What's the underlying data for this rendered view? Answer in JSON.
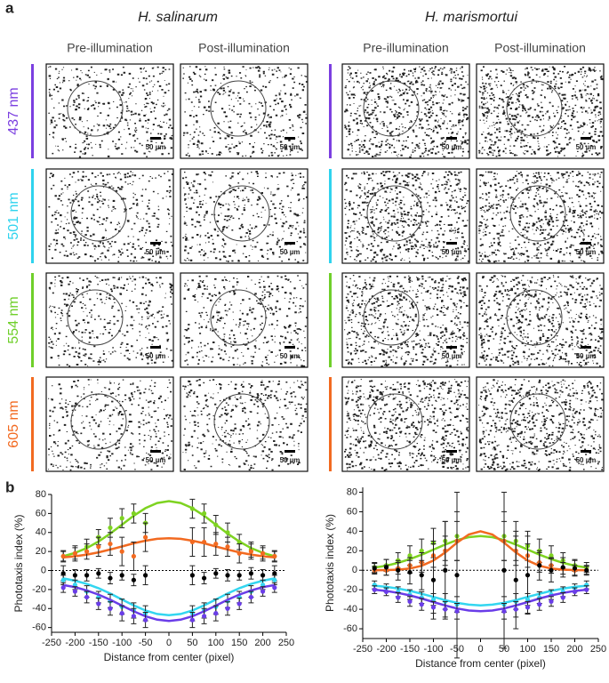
{
  "panel_a": {
    "label": "a",
    "species": [
      "H. salinarum",
      "H. marismortui"
    ],
    "columns": [
      "Pre-illumination",
      "Post-illumination",
      "Pre-illumination",
      "Post-illumination"
    ],
    "rows": [
      {
        "label": "437 nm",
        "color": "#7b3fe0"
      },
      {
        "label": "501 nm",
        "color": "#2fd3ee"
      },
      {
        "label": "554 nm",
        "color": "#6fcf2a"
      },
      {
        "label": "605 nm",
        "color": "#f26a21"
      }
    ],
    "scale_bar": "50 µm"
  },
  "panel_b": {
    "label": "b"
  },
  "chart_data": [
    {
      "type": "line",
      "y_label": "Phototaxis index (%)",
      "x_label": "Distance from center (pixel)",
      "x": [
        -225,
        -200,
        -175,
        -150,
        -125,
        -100,
        -75,
        -50,
        50,
        75,
        100,
        125,
        150,
        175,
        200,
        225
      ],
      "xlim": [
        -250,
        250
      ],
      "xticks": [
        -250,
        -200,
        -150,
        -100,
        -50,
        0,
        50,
        100,
        150,
        200,
        250
      ],
      "ylim": [
        -65,
        80
      ],
      "yticks": [
        -60,
        -40,
        -20,
        0,
        20,
        40,
        60,
        80
      ],
      "reference_line": 0,
      "fit_x": [
        -225,
        -200,
        -175,
        -150,
        -125,
        -100,
        -75,
        -50,
        -25,
        0,
        25,
        50,
        75,
        100,
        125,
        150,
        175,
        200,
        225
      ],
      "series": [
        {
          "color": "#7ed321",
          "values": [
            15,
            18,
            25,
            35,
            45,
            55,
            60,
            50,
            65,
            60,
            48,
            40,
            30,
            22,
            18,
            15
          ],
          "errors": [
            5,
            6,
            8,
            8,
            10,
            10,
            10,
            10,
            10,
            10,
            10,
            10,
            8,
            8,
            6,
            5
          ],
          "fit": [
            15.0,
            18.5,
            23.6,
            30.5,
            38.8,
            48.2,
            57.6,
            65.6,
            71.0,
            73,
            71.0,
            65.6,
            57.6,
            48.2,
            38.8,
            30.5,
            23.6,
            18.5,
            15.0
          ]
        },
        {
          "color": "#f26a21",
          "values": [
            15,
            18,
            20,
            25,
            28,
            20,
            15,
            35,
            30,
            30,
            28,
            25,
            18,
            20,
            18,
            15
          ],
          "errors": [
            6,
            8,
            8,
            10,
            12,
            15,
            15,
            15,
            15,
            15,
            12,
            10,
            10,
            8,
            8,
            6
          ],
          "fit": [
            13.8,
            15.0,
            16.8,
            19.1,
            22.1,
            25.3,
            28.6,
            31.4,
            33.3,
            34,
            33.3,
            31.4,
            28.6,
            25.3,
            22.1,
            19.1,
            16.8,
            15.0,
            13.8
          ]
        },
        {
          "color": "#000000",
          "values": [
            -3,
            -5,
            -5,
            -3,
            -8,
            -5,
            -10,
            -5,
            -5,
            -8,
            -3,
            -5,
            -5,
            -3,
            -5,
            -3
          ],
          "errors": [
            8,
            6,
            6,
            5,
            6,
            5,
            6,
            10,
            10,
            6,
            5,
            6,
            5,
            6,
            6,
            8
          ]
        },
        {
          "color": "#33d6f0",
          "values": [
            -10,
            -15,
            -22,
            -28,
            -32,
            -38,
            -42,
            -45,
            -45,
            -42,
            -38,
            -32,
            -28,
            -22,
            -15,
            -10
          ],
          "errors": [
            5,
            5,
            6,
            6,
            7,
            8,
            8,
            8,
            8,
            8,
            8,
            7,
            6,
            6,
            5,
            5
          ],
          "fit": [
            -8.3,
            -10.7,
            -14.1,
            -18.6,
            -24.2,
            -30.5,
            -36.7,
            -42.1,
            -45.7,
            -47,
            -45.7,
            -42.1,
            -36.7,
            -30.5,
            -24.2,
            -18.6,
            -14.1,
            -10.7,
            -8.3
          ]
        },
        {
          "color": "#6a3de8",
          "values": [
            -18,
            -22,
            -28,
            -35,
            -40,
            -45,
            -48,
            -52,
            -52,
            -48,
            -45,
            -40,
            -35,
            -28,
            -22,
            -18
          ],
          "errors": [
            5,
            5,
            6,
            6,
            7,
            8,
            8,
            8,
            8,
            8,
            8,
            7,
            6,
            6,
            5,
            5
          ],
          "fit": [
            -15.3,
            -17.5,
            -20.9,
            -25.3,
            -30.8,
            -36.9,
            -42.9,
            -48.2,
            -51.7,
            -53,
            -51.7,
            -48.2,
            -42.9,
            -36.9,
            -30.8,
            -25.3,
            -20.9,
            -17.5,
            -15.3
          ]
        }
      ]
    },
    {
      "type": "line",
      "y_label": "Phototaxis index (%)",
      "x_label": "Distance from center (pixel)",
      "x": [
        -225,
        -200,
        -175,
        -150,
        -125,
        -100,
        -75,
        -50,
        50,
        75,
        100,
        125,
        150,
        175,
        200,
        225
      ],
      "xlim": [
        -250,
        250
      ],
      "xticks": [
        -250,
        -200,
        -150,
        -100,
        -50,
        0,
        50,
        100,
        150,
        200,
        250
      ],
      "ylim": [
        -70,
        85
      ],
      "yticks": [
        -60,
        -40,
        -20,
        0,
        20,
        40,
        60,
        80
      ],
      "reference_line": 0,
      "fit_x": [
        -225,
        -200,
        -175,
        -150,
        -125,
        -100,
        -75,
        -50,
        -25,
        0,
        25,
        50,
        75,
        100,
        125,
        150,
        175,
        200,
        225
      ],
      "series": [
        {
          "color": "#7ed321",
          "values": [
            3,
            5,
            10,
            15,
            20,
            28,
            30,
            35,
            35,
            30,
            25,
            20,
            15,
            10,
            5,
            3
          ],
          "errors": [
            5,
            6,
            8,
            10,
            12,
            15,
            20,
            25,
            25,
            20,
            15,
            12,
            10,
            8,
            6,
            5
          ],
          "fit": [
            2.8,
            4.7,
            7.6,
            11.4,
            16.0,
            21.2,
            26.4,
            30.9,
            33.9,
            35,
            33.9,
            30.9,
            26.4,
            21.2,
            16.0,
            11.4,
            7.6,
            4.7,
            2.8
          ]
        },
        {
          "color": "#f26a21",
          "values": [
            0,
            0,
            2,
            5,
            8,
            15,
            20,
            30,
            30,
            20,
            15,
            8,
            5,
            2,
            0,
            0
          ],
          "errors": [
            4,
            5,
            6,
            8,
            10,
            12,
            15,
            20,
            20,
            15,
            12,
            10,
            8,
            6,
            5,
            4
          ],
          "fit": [
            0.0,
            0.2,
            0.6,
            1.8,
            4.6,
            10.0,
            18.3,
            28.3,
            36.7,
            40,
            36.7,
            28.3,
            18.3,
            10.0,
            4.6,
            1.8,
            0.6,
            0.2,
            0.0
          ]
        },
        {
          "color": "#000000",
          "values": [
            2,
            3,
            0,
            -2,
            -5,
            -10,
            0,
            -5,
            0,
            -10,
            -5,
            5,
            0,
            3,
            2,
            0
          ],
          "errors": [
            5,
            8,
            10,
            12,
            15,
            40,
            50,
            85,
            80,
            50,
            40,
            15,
            12,
            10,
            8,
            5
          ]
        },
        {
          "color": "#33d6f0",
          "values": [
            -15,
            -18,
            -22,
            -25,
            -28,
            -30,
            -32,
            -35,
            -35,
            -32,
            -30,
            -28,
            -25,
            -22,
            -18,
            -15
          ],
          "errors": [
            4,
            4,
            5,
            5,
            6,
            6,
            8,
            8,
            8,
            8,
            6,
            6,
            5,
            5,
            4,
            4
          ],
          "fit": [
            -15.8,
            -17.0,
            -18.8,
            -21.1,
            -24.1,
            -27.3,
            -30.6,
            -33.4,
            -35.3,
            -36,
            -35.3,
            -33.4,
            -30.6,
            -27.3,
            -24.1,
            -21.1,
            -18.8,
            -17.0,
            -15.8
          ]
        },
        {
          "color": "#6a3de8",
          "values": [
            -20,
            -22,
            -28,
            -32,
            -35,
            -38,
            -40,
            -42,
            -42,
            -40,
            -38,
            -35,
            -32,
            -28,
            -22,
            -20
          ],
          "errors": [
            4,
            4,
            5,
            5,
            6,
            6,
            8,
            8,
            8,
            8,
            6,
            6,
            5,
            5,
            4,
            4
          ],
          "fit": [
            -19.9,
            -21.2,
            -23.2,
            -25.8,
            -29.0,
            -32.6,
            -36.1,
            -39.2,
            -41.3,
            -42,
            -41.3,
            -39.2,
            -36.1,
            -32.6,
            -29.0,
            -25.8,
            -23.2,
            -21.2,
            -19.9
          ]
        }
      ]
    }
  ]
}
